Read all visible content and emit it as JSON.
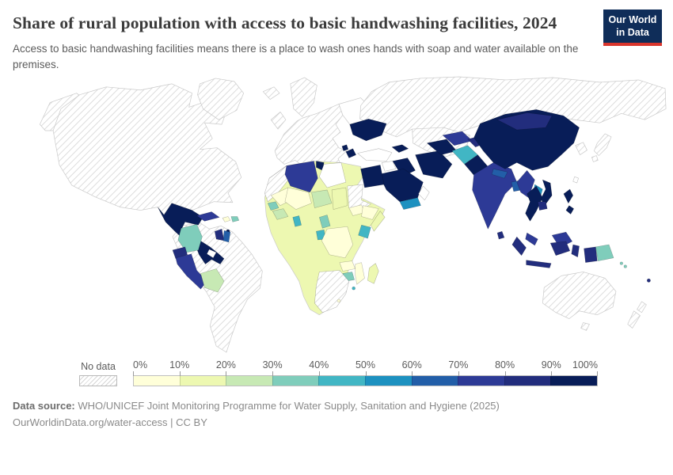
{
  "header": {
    "title": "Share of rural population with access to basic handwashing facilities, 2024",
    "subtitle": "Access to basic handwashing facilities means there is a place to wash ones hands with soap and water available on the premises.",
    "logo_line1": "Our World",
    "logo_line2": "in Data"
  },
  "legend": {
    "no_data_label": "No data",
    "tick_labels": [
      "0%",
      "10%",
      "20%",
      "30%",
      "40%",
      "50%",
      "60%",
      "70%",
      "80%",
      "90%",
      "100%"
    ],
    "bin_colors": [
      "#ffffd9",
      "#edf8b1",
      "#c7e9b4",
      "#7fcdbb",
      "#41b6c4",
      "#1d91c0",
      "#225ea8",
      "#2d3a96",
      "#222d7d",
      "#081d58"
    ]
  },
  "footer": {
    "source_label": "Data source:",
    "source_text": "WHO/UNICEF Joint Monitoring Programme for Water Supply, Sanitation and Hygiene (2025)",
    "note": "OurWorldinData.org/water-access | CC BY"
  },
  "colors": {
    "logo_bg": "#0f2d59",
    "logo_stripe": "#d9352c",
    "no_data_hatch_line": "#d6d6d6",
    "ocean": "#ffffff"
  },
  "map": {
    "regions": {
      "alaska": "nodata",
      "north-america": "nodata",
      "greenland": "nodata",
      "mexico": "#081d58",
      "central-america": "#081d58",
      "nicaragua": "white",
      "cuba": "#2d3a96",
      "haiti": "#ffffd9",
      "dominican-republic": "#7fcdbb",
      "trinidad": "#081d58",
      "south-america": "nodata",
      "colombia": "#7fcdbb",
      "ecuador": "#222d7d",
      "peru": "#2d3a96",
      "bolivia": "#c7e9b4",
      "guyana": "#222d7d",
      "suriname": "#225ea8",
      "iceland": "nodata",
      "united-kingdom": "nodata",
      "scandinavia": "nodata",
      "europe-mainland": "nodata",
      "eastern-europe": "white",
      "ukraine": "#081d58",
      "serbia": "#081d58",
      "bosnia": "#081d58",
      "russia": "nodata",
      "kazakhstan": "nodata",
      "turkey": "white",
      "syria": "white",
      "iraq": "#081d58",
      "iran": "#081d58",
      "saudi-arabia": "#081d58",
      "yemen": "#1d91c0",
      "oman": "white",
      "caucasus": "#081d58",
      "turkmenistan": "#081d58",
      "uzbekistan": "#2d3a96",
      "kyrgyz-tajik": "#222d7d",
      "afghanistan": "#41b6c4",
      "pakistan": "#081d58",
      "india": "#2d3a96",
      "nepal": "#225ea8",
      "bangladesh": "#225ea8",
      "sri-lanka": "#222d7d",
      "china": "#081d58",
      "mongolia": "#222d7d",
      "korea": "nodata",
      "japan": "nodata",
      "taiwan": "white",
      "myanmar": "#2d3a96",
      "thailand": "#081d58",
      "laos": "#1d91c0",
      "vietnam": "#081d58",
      "cambodia": "#222d7d",
      "malaysia": "#2d3a96",
      "indonesia": "#222d7d",
      "philippines": "#081d58",
      "papua-new-guinea": "#7fcdbb",
      "solomon-islands": "#7fcdbb",
      "fiji": "#222d7d",
      "australia": "nodata",
      "new-zealand": "nodata",
      "africa-base": "#edf8b1",
      "morocco": "nodata",
      "algeria": "#2d3a96",
      "tunisia": "#081d58",
      "libya": "white",
      "egypt": "#081d58",
      "mauritania": "#ffffd9",
      "mali": "#ffffd9",
      "niger": "#c7e9b4",
      "chad": "#edf8b1",
      "sudan": "nodata",
      "south-sudan": "#ffffd9",
      "ethiopia": "#ffffd9",
      "somalia": "#edf8b1",
      "kenya": "#41b6c4",
      "senegal": "#7fcdbb",
      "guinea": "#c7e9b4",
      "ghana": "#41b6c4",
      "cameroon": "#7fcdbb",
      "gabon": "#41b6c4",
      "dr-congo": "#ffffd9",
      "zambia": "#ffffd9",
      "zimbabwe": "#7fcdbb",
      "mozambique": "#ffffd9",
      "southern-africa": "nodata",
      "madagascar": "#edf8b1",
      "eswatini": "#41b6c4",
      "lesotho": "#ffffd9"
    }
  },
  "chart_data": {
    "type": "choropleth_map",
    "title": "Share of rural population with access to basic handwashing facilities, 2024",
    "unit": "% of rural population",
    "legend_bins": [
      "0-10%",
      "10-20%",
      "20-30%",
      "30-40%",
      "40-50%",
      "50-60%",
      "60-70%",
      "70-80%",
      "80-90%",
      "90-100%"
    ],
    "legend_colors": [
      "#ffffd9",
      "#edf8b1",
      "#c7e9b4",
      "#7fcdbb",
      "#41b6c4",
      "#1d91c0",
      "#225ea8",
      "#2d3a96",
      "#222d7d",
      "#081d58"
    ],
    "no_data_style": "diagonal gray hatching",
    "countries": {
      "United States": "no data",
      "Canada": "no data",
      "Greenland": "no data",
      "Mexico": "90-100",
      "Guatemala": "90-100",
      "Honduras": "90-100",
      "Nicaragua": "no data",
      "Costa Rica": "90-100",
      "Panama": "90-100",
      "Cuba": "70-80",
      "Haiti": "0-10",
      "Dominican Republic": "30-40",
      "Trinidad and Tobago": "90-100",
      "Colombia": "30-40",
      "Venezuela": "no data",
      "Guyana": "80-90",
      "Suriname": "60-70",
      "Ecuador": "80-90",
      "Peru": "70-80",
      "Bolivia": "20-30",
      "Brazil": "no data",
      "Argentina": "no data",
      "Chile": "no data",
      "Paraguay": "no data",
      "Uruguay": "no data",
      "Western Europe": "no data",
      "Ukraine": "90-100",
      "Serbia": "90-100",
      "Bosnia and Herzegovina": "90-100",
      "Russia": "no data",
      "Kazakhstan": "no data",
      "Turkey": "no data",
      "Syria": "no data",
      "Iraq": "90-100",
      "Iran": "90-100",
      "Saudi Arabia": "90-100",
      "Yemen": "50-60",
      "Oman": "no data",
      "Azerbaijan": "90-100",
      "Turkmenistan": "90-100",
      "Uzbekistan": "70-80",
      "Tajikistan": "80-90",
      "Afghanistan": "40-50",
      "Pakistan": "90-100",
      "India": "70-80",
      "Nepal": "60-70",
      "Bangladesh": "60-70",
      "Sri Lanka": "80-90",
      "China": "90-100",
      "Mongolia": "80-90",
      "Japan": "no data",
      "South Korea": "no data",
      "Myanmar": "70-80",
      "Thailand": "90-100",
      "Laos": "50-60",
      "Vietnam": "90-100",
      "Cambodia": "80-90",
      "Malaysia": "70-80",
      "Indonesia": "80-90",
      "Philippines": "90-100",
      "Papua New Guinea": "30-40",
      "Solomon Islands": "30-40",
      "Fiji": "80-90",
      "Australia": "no data",
      "New Zealand": "no data",
      "Morocco": "no data",
      "Algeria": "70-80",
      "Tunisia": "90-100",
      "Libya": "no data",
      "Egypt": "90-100",
      "Mauritania": "0-10",
      "Mali": "0-10",
      "Niger": "20-30",
      "Chad": "10-20",
      "Sudan": "no data",
      "South Sudan": "0-10",
      "Ethiopia": "0-10",
      "Somalia": "10-20",
      "Kenya": "40-50",
      "Senegal": "30-40",
      "Guinea": "20-30",
      "Ghana": "40-50",
      "Nigeria": "10-20",
      "Cameroon": "30-40",
      "Gabon": "40-50",
      "DR Congo": "0-10",
      "Zambia": "0-10",
      "Zimbabwe": "30-40",
      "Mozambique": "0-10",
      "Tanzania": "10-20",
      "Angola": "10-20",
      "Madagascar": "10-20",
      "South Africa": "no data",
      "Namibia": "no data",
      "Botswana": "no data",
      "Eswatini": "40-50",
      "Lesotho": "0-10"
    }
  }
}
